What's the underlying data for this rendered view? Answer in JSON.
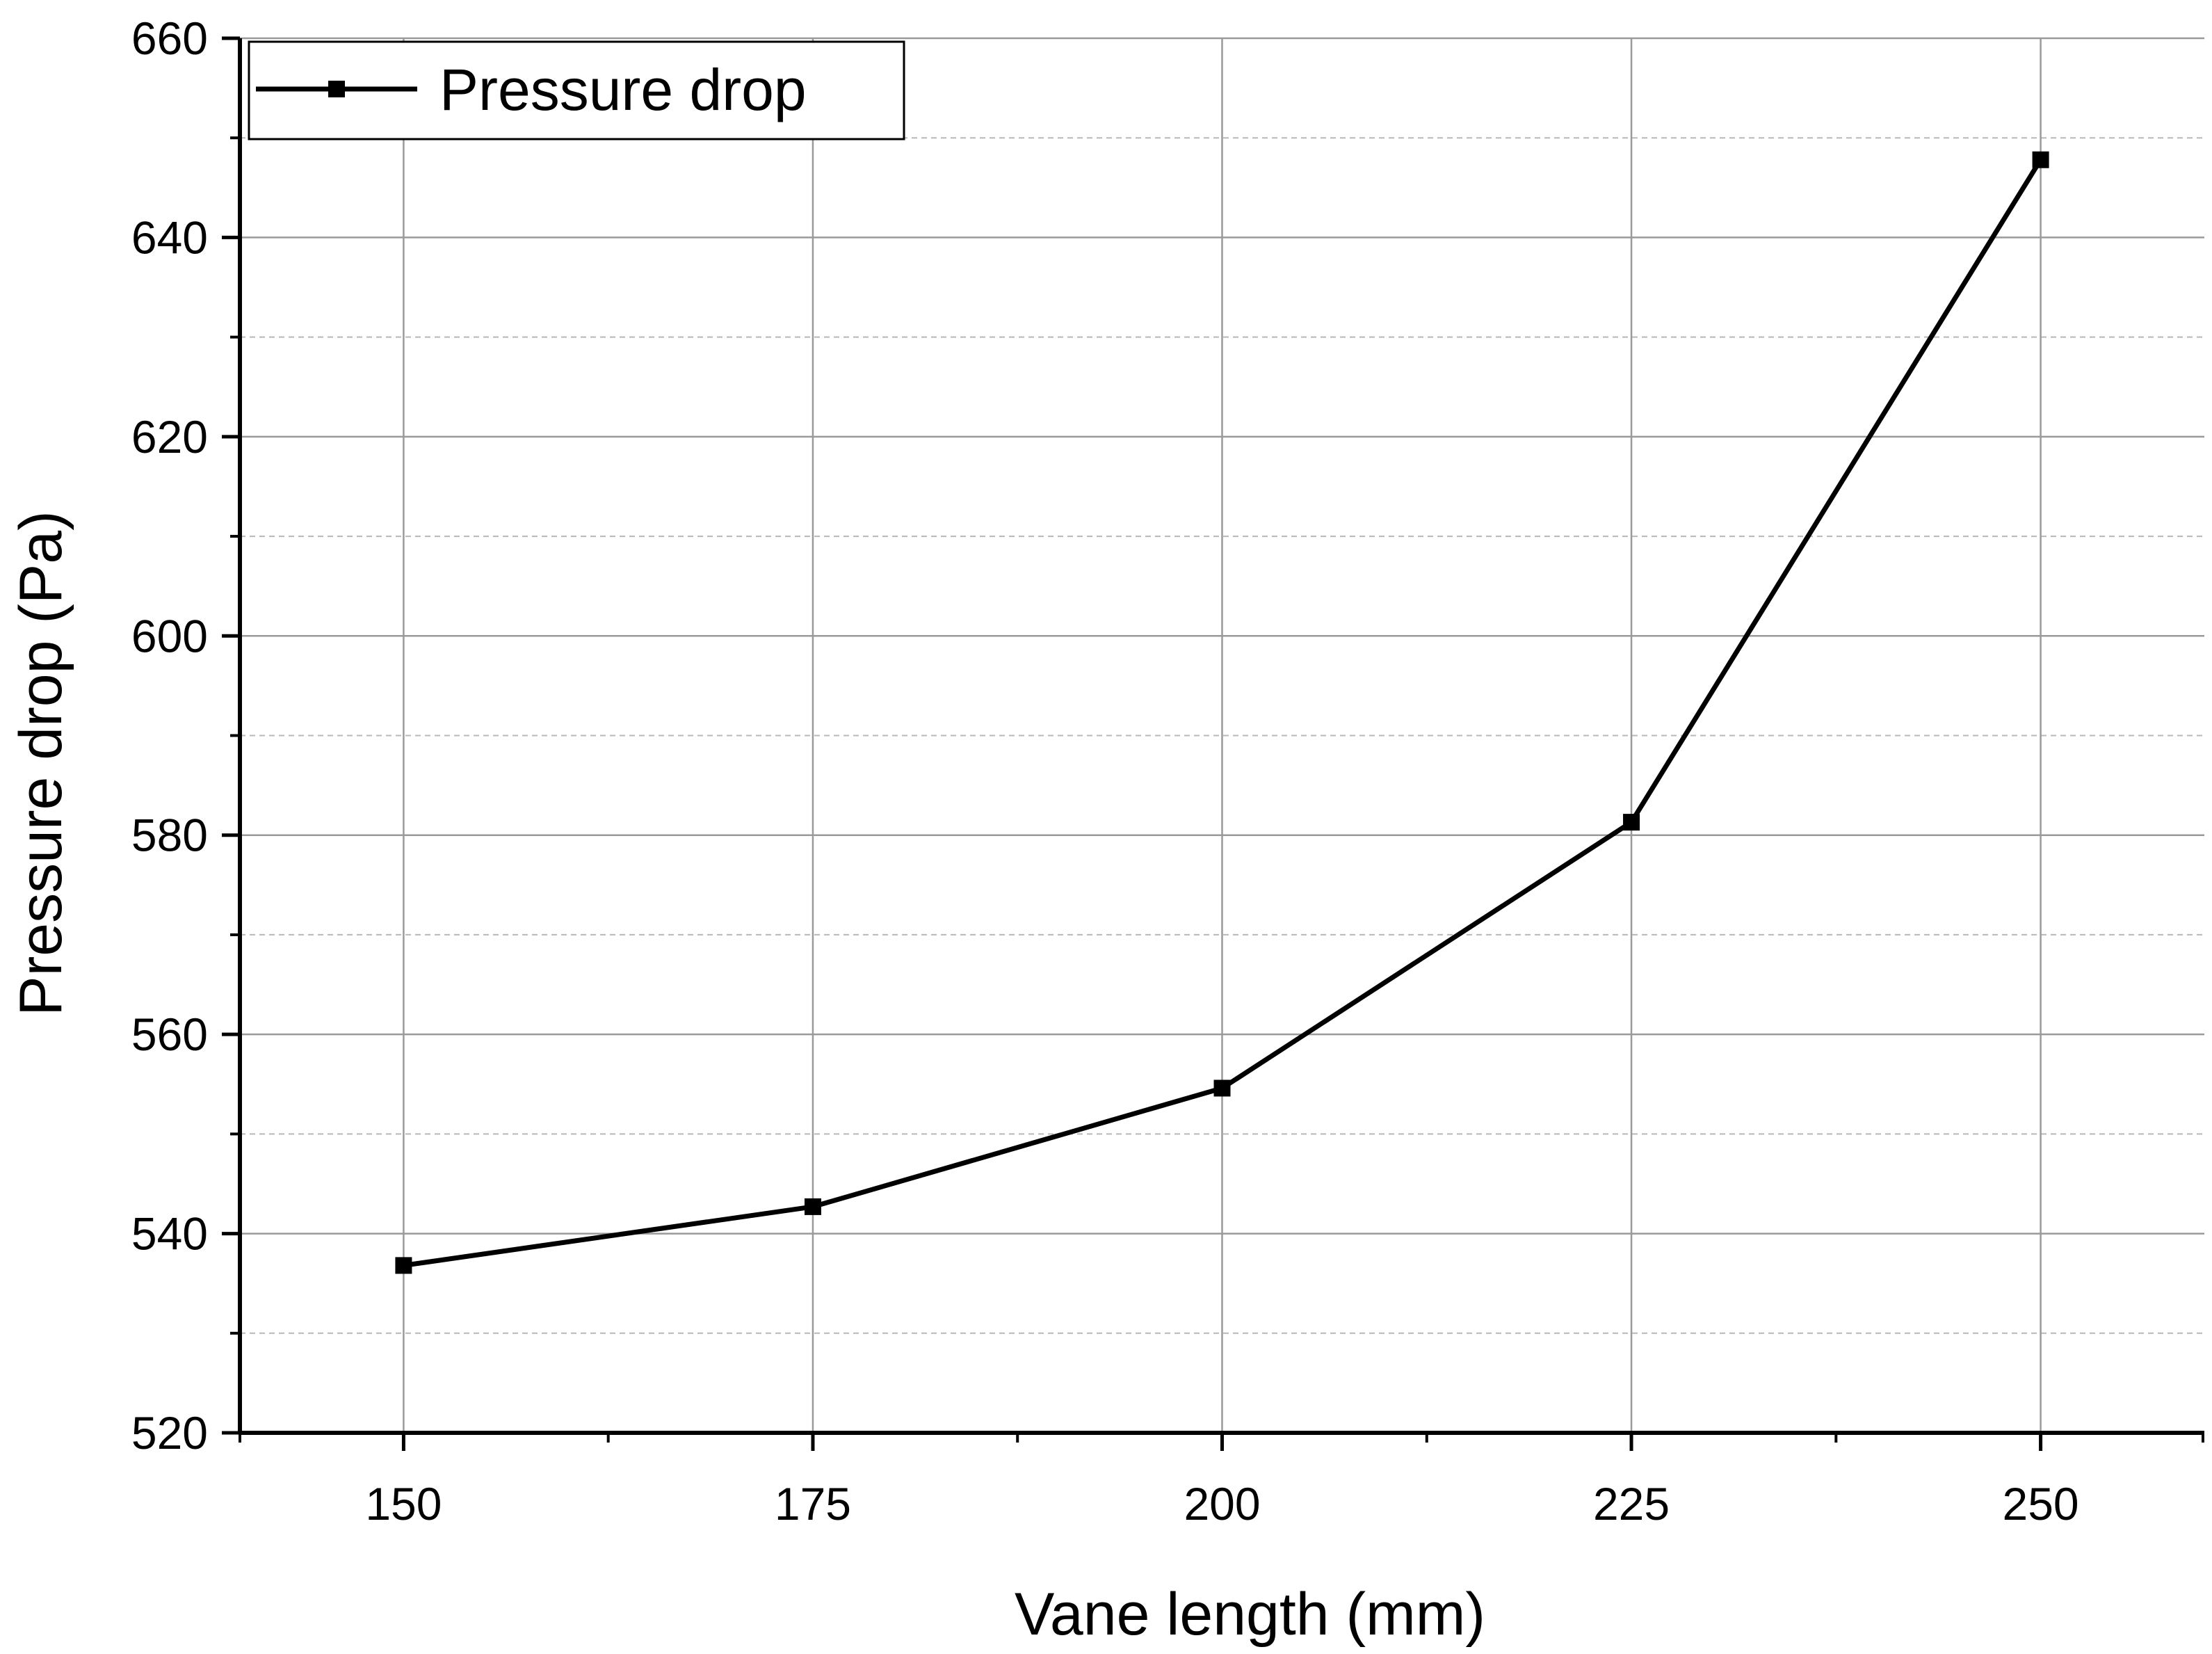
{
  "chart_data": {
    "type": "line",
    "xlabel": "Vane length (mm)",
    "ylabel": "Pressure drop (Pa)",
    "x_ticks": [
      "150",
      "175",
      "200",
      "225",
      "250"
    ],
    "y_ticks": [
      "520",
      "540",
      "560",
      "580",
      "600",
      "620",
      "640",
      "660"
    ],
    "xlim": [
      140,
      260
    ],
    "ylim": [
      520,
      660
    ],
    "grid": true,
    "legend_position": "top-left",
    "series": [
      {
        "name": "Pressure drop",
        "color": "#000000",
        "marker": "square",
        "x": [
          150,
          175,
          200,
          225,
          250
        ],
        "y": [
          536.8,
          542.7,
          554.6,
          581.3,
          647.8
        ]
      }
    ]
  }
}
